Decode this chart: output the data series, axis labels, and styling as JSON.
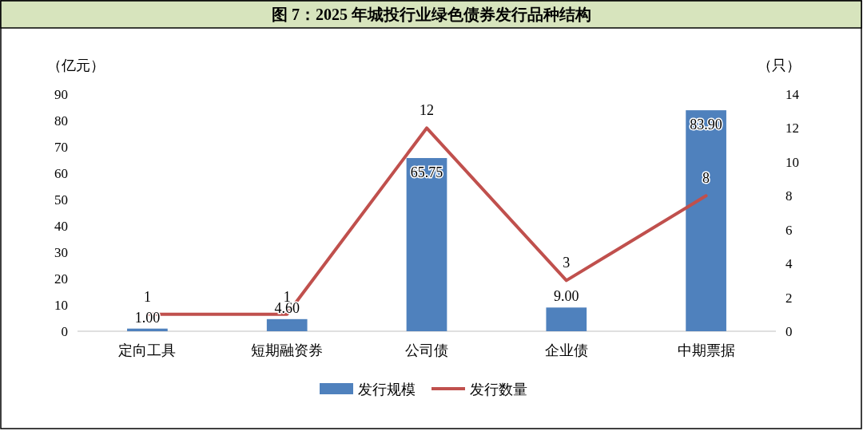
{
  "chart_data": {
    "type": "bar",
    "title": "图 7：2025 年城投行业绿色债券发行品种结构",
    "ylabel": "（亿元）",
    "y2label": "（只）",
    "categories": [
      "定向工具",
      "短期融资券",
      "公司债",
      "企业债",
      "中期票据"
    ],
    "series": [
      {
        "name": "发行规模",
        "color": "#4f81bd",
        "values": [
          1.0,
          4.6,
          65.75,
          9.0,
          83.9
        ],
        "value_labels": [
          "1.00",
          "4.60",
          "65.75",
          "9.00",
          "83.90"
        ]
      },
      {
        "name": "发行数量",
        "type": "line",
        "axis": "y2",
        "color": "#c0504d",
        "values": [
          1,
          1,
          12,
          3,
          8
        ],
        "value_labels": [
          "1",
          "1",
          "12",
          "3",
          "8"
        ],
        "marker": "none"
      }
    ],
    "ylim": [
      0,
      90
    ],
    "yticks": [
      0,
      10,
      20,
      30,
      40,
      50,
      60,
      70,
      80,
      90
    ],
    "y2lim": [
      0,
      14
    ],
    "y2ticks": [
      0,
      2,
      4,
      6,
      8,
      10,
      12,
      14
    ],
    "grid": false,
    "legend": "bottom"
  }
}
